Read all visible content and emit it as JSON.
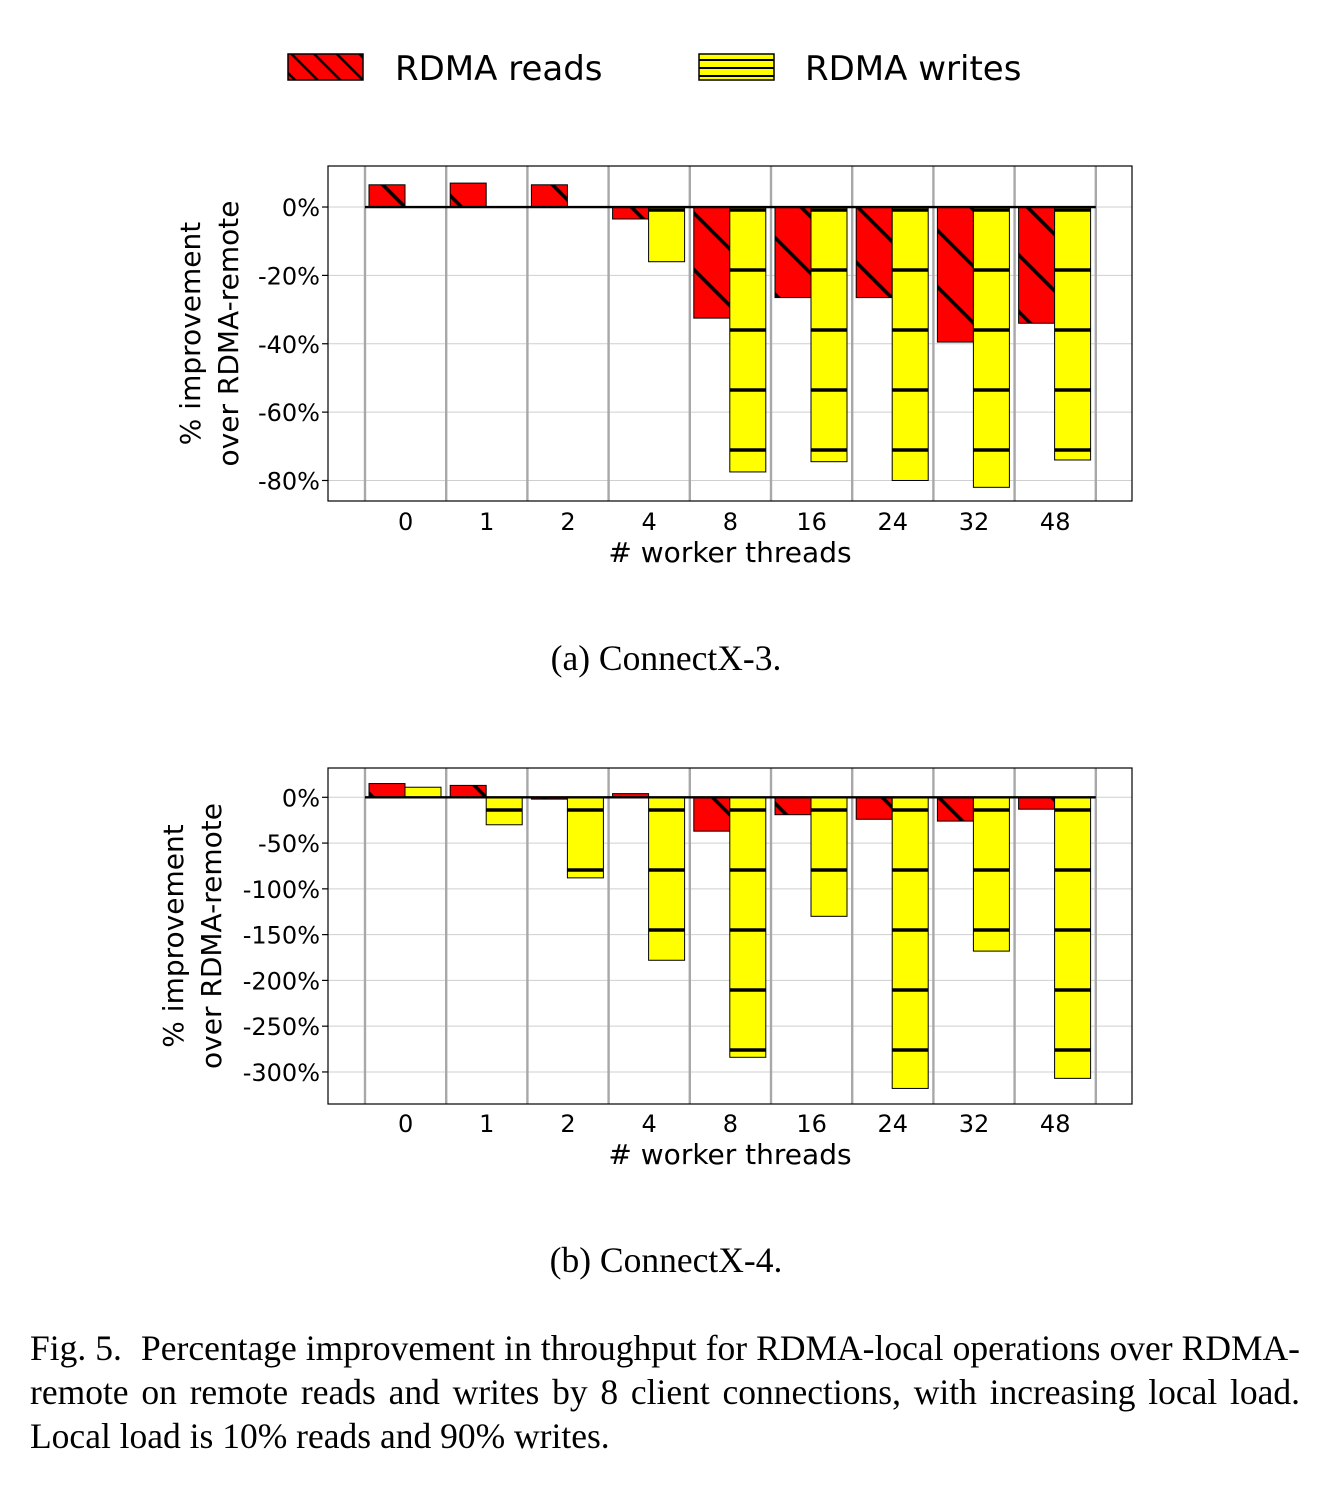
{
  "legend": [
    {
      "name": "RDMA reads",
      "color": "#ff0000",
      "hatch": "diagonal"
    },
    {
      "name": "RDMA writes",
      "color": "#ffff00",
      "hatch": "horizontal"
    }
  ],
  "chart_data": [
    {
      "type": "bar",
      "subcaption": "(a) ConnectX-3.",
      "categories": [
        "0",
        "1",
        "2",
        "4",
        "8",
        "16",
        "24",
        "32",
        "48"
      ],
      "xlabel": "# worker threads",
      "ylabel": [
        "% improvement",
        "over RDMA-remote"
      ],
      "ylim": [
        -86,
        12
      ],
      "yticks": [
        0,
        -20,
        -40,
        -60,
        -80
      ],
      "ytick_labels": [
        "0%",
        "-20%",
        "-40%",
        "-60%",
        "-80%"
      ],
      "grid": true,
      "series": [
        {
          "name": "RDMA reads",
          "values": [
            6.5,
            7,
            6.5,
            -3.5,
            -32.5,
            -26.5,
            -26.5,
            -39.5,
            -34
          ]
        },
        {
          "name": "RDMA writes",
          "values": [
            0,
            0,
            0,
            -16,
            -77.5,
            -74.5,
            -80,
            -82,
            -74
          ]
        }
      ]
    },
    {
      "type": "bar",
      "subcaption": "(b) ConnectX-4.",
      "categories": [
        "0",
        "1",
        "2",
        "4",
        "8",
        "16",
        "24",
        "32",
        "48"
      ],
      "xlabel": "# worker threads",
      "ylabel": [
        "% improvement",
        "over RDMA-remote"
      ],
      "ylim": [
        -335,
        32
      ],
      "yticks": [
        0,
        -50,
        -100,
        -150,
        -200,
        -250,
        -300
      ],
      "ytick_labels": [
        "0%",
        "-50%",
        "-100%",
        "-150%",
        "-200%",
        "-250%",
        "-300%"
      ],
      "grid": true,
      "series": [
        {
          "name": "RDMA reads",
          "values": [
            15,
            13,
            -2,
            4,
            -37,
            -19,
            -24,
            -26,
            -13
          ]
        },
        {
          "name": "RDMA writes",
          "values": [
            11,
            -30,
            -88,
            -178,
            -284,
            -130,
            -318,
            -168,
            -307
          ]
        }
      ]
    }
  ],
  "caption": {
    "label": "Fig. 5.",
    "text": "Percentage improvement in throughput for RDMA-local operations over RDMA-remote on remote reads and writes by 8 client connections, with increasing local load. Local load is 10% reads and 90% writes."
  }
}
